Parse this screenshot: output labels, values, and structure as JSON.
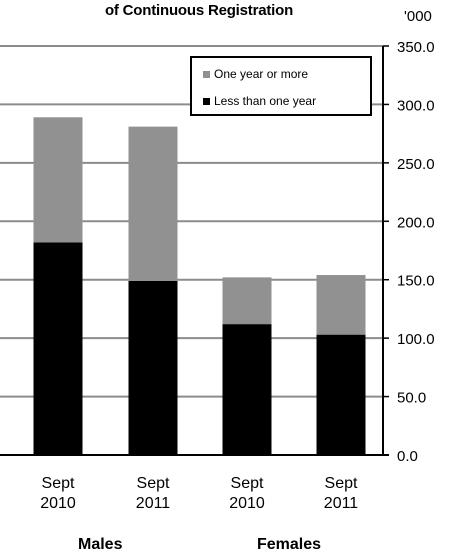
{
  "chart_data": {
    "type": "bar",
    "stacked": true,
    "title": "of Continuous Registration",
    "unit_label": "'000",
    "ylim": [
      0,
      350
    ],
    "y_ticks": [
      "0.0",
      "50.0",
      "100.0",
      "150.0",
      "200.0",
      "250.0",
      "300.0",
      "350.0"
    ],
    "y_axis_side": "right",
    "grid": true,
    "categories": [
      {
        "line1": "Sept",
        "line2": "2010"
      },
      {
        "line1": "Sept",
        "line2": "2011"
      },
      {
        "line1": "Sept",
        "line2": "2010"
      },
      {
        "line1": "Sept",
        "line2": "2011"
      }
    ],
    "groups": [
      "Males",
      "Females"
    ],
    "series": [
      {
        "name": "Less than one year",
        "color": "#000000",
        "values": [
          182,
          149,
          112,
          103
        ]
      },
      {
        "name": "One year or more",
        "color": "#919191",
        "values": [
          107,
          132,
          40,
          51
        ]
      }
    ],
    "legend": {
      "position": "top-right"
    }
  }
}
